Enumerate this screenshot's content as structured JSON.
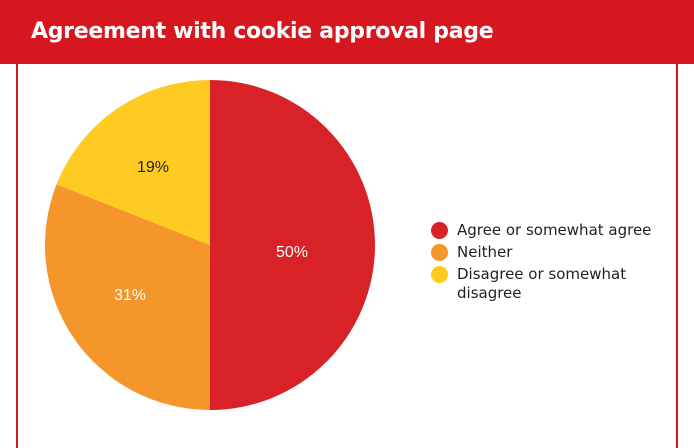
{
  "header": {
    "title": "Agreement with cookie approval page"
  },
  "colors": {
    "accent": "#d7171f",
    "agree": "#d92128",
    "neither": "#f5962a",
    "disagree": "#fdcb21"
  },
  "chart_data": {
    "type": "pie",
    "categories": [
      "Agree or somewhat agree",
      "Neither",
      "Disagree or somewhat disagree"
    ],
    "values": [
      50,
      31,
      19
    ],
    "labels": [
      "50%",
      "31%",
      "19%"
    ],
    "title": "Agreement with cookie approval page",
    "legend_position": "right"
  },
  "legend": {
    "items": [
      {
        "label": "Agree or somewhat agree",
        "color": "#d92128"
      },
      {
        "label": "Neither",
        "color": "#f5962a"
      },
      {
        "label": "Disagree or somewhat disagree",
        "color": "#fdcb21"
      }
    ]
  }
}
